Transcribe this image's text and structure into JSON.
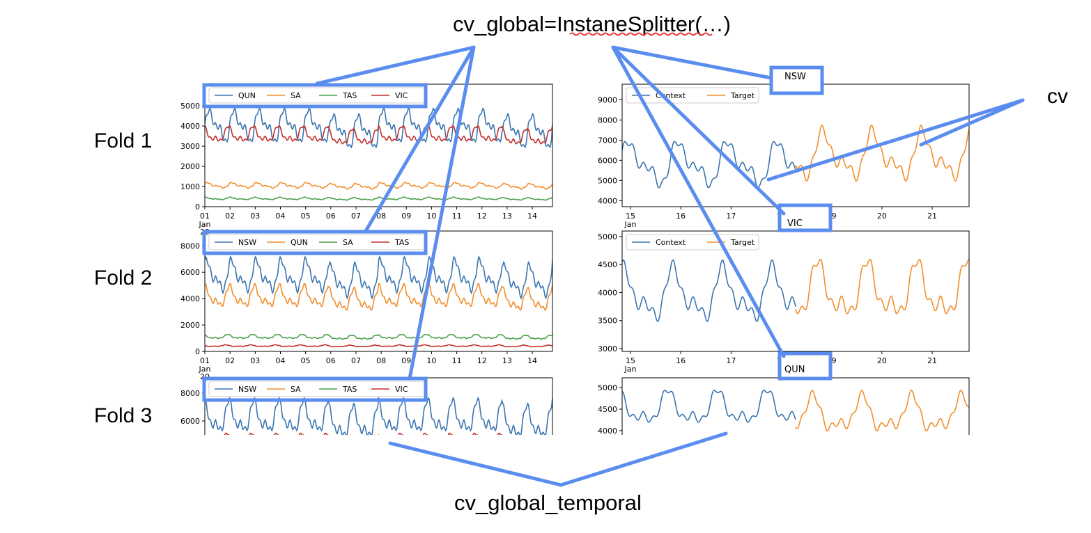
{
  "diagram": {
    "title_code": "cv_global=InstaneSplitter(…)",
    "bottom_label": "cv_global_temporal",
    "right_label": "cv",
    "fold_labels": [
      "Fold 1",
      "Fold 2",
      "Fold 3"
    ],
    "callout_labels": [
      "NSW",
      "VIC",
      "QUN"
    ],
    "accent_color": "#5b8def",
    "squiggle_color": "#e53935"
  },
  "chart_data": [
    {
      "type": "line",
      "fold": "Fold 1",
      "legend": [
        "QUN",
        "SA",
        "TAS",
        "VIC"
      ],
      "series_colors": [
        "#3a75b0",
        "#f28e2b",
        "#4aa14a",
        "#c4302b"
      ],
      "yticks": [
        "0",
        "1000",
        "2000",
        "3000",
        "4000",
        "5000"
      ],
      "ylim": [
        0,
        5800
      ],
      "xticks": [
        "01",
        "02",
        "03",
        "04",
        "05",
        "06",
        "07",
        "08",
        "09",
        "10",
        "11",
        "12",
        "13",
        "14"
      ],
      "xsub": [
        "Jan",
        "20"
      ],
      "series": [
        {
          "name": "QUN",
          "base": 4000,
          "amp": 1100
        },
        {
          "name": "SA",
          "base": 1050,
          "amp": 180
        },
        {
          "name": "TAS",
          "base": 400,
          "amp": 80
        },
        {
          "name": "VIC",
          "base": 3550,
          "amp": 550
        }
      ]
    },
    {
      "type": "line",
      "fold": "Fold 1",
      "legend": [
        "Context",
        "Target"
      ],
      "series_colors": [
        "#3a75b0",
        "#f28e2b"
      ],
      "yticks": [
        "4000",
        "5000",
        "6000",
        "7000",
        "8000",
        "9000"
      ],
      "ylim": [
        3700,
        9500
      ],
      "xticks": [
        "15",
        "16",
        "17",
        "18",
        "19",
        "20",
        "21"
      ],
      "xsub": [
        "Jan"
      ],
      "series": [
        {
          "name": "Context",
          "base": 5800,
          "amp": 1500
        },
        {
          "name": "Target",
          "base": 6200,
          "amp": 1600
        }
      ]
    },
    {
      "type": "line",
      "fold": "Fold 2",
      "legend": [
        "NSW",
        "QUN",
        "SA",
        "TAS"
      ],
      "series_colors": [
        "#3a75b0",
        "#f28e2b",
        "#4aa14a",
        "#c4302b"
      ],
      "yticks": [
        "0",
        "2000",
        "4000",
        "6000",
        "8000"
      ],
      "ylim": [
        0,
        8700
      ],
      "xticks": [
        "01",
        "02",
        "03",
        "04",
        "05",
        "06",
        "07",
        "08",
        "09",
        "10",
        "11",
        "12",
        "13",
        "14"
      ],
      "xsub": [
        "Jan",
        "20"
      ],
      "series": [
        {
          "name": "NSW",
          "base": 5700,
          "amp": 1600
        },
        {
          "name": "QUN",
          "base": 4100,
          "amp": 1100
        },
        {
          "name": "SA",
          "base": 1100,
          "amp": 220
        },
        {
          "name": "TAS",
          "base": 420,
          "amp": 90
        }
      ]
    },
    {
      "type": "line",
      "fold": "Fold 2",
      "legend": [
        "Context",
        "Target"
      ],
      "series_colors": [
        "#3a75b0",
        "#f28e2b"
      ],
      "yticks": [
        "3000",
        "3500",
        "4000",
        "4500",
        "5000"
      ],
      "ylim": [
        2950,
        5000
      ],
      "xticks": [
        "15",
        "16",
        "17",
        "18",
        "19",
        "20",
        "21"
      ],
      "xsub": [
        "Jan"
      ],
      "series": [
        {
          "name": "Context",
          "base": 3950,
          "amp": 650
        },
        {
          "name": "Target",
          "base": 4000,
          "amp": 700
        }
      ]
    },
    {
      "type": "line",
      "fold": "Fold 3",
      "legend": [
        "NSW",
        "SA",
        "TAS",
        "VIC"
      ],
      "series_colors": [
        "#3a75b0",
        "#f28e2b",
        "#4aa14a",
        "#c4302b"
      ],
      "yticks": [
        "6000",
        "8000"
      ],
      "ylim": [
        5000,
        8700
      ],
      "xticks": [],
      "xsub": [],
      "series": [
        {
          "name": "NSW",
          "base": 6200,
          "amp": 1600
        },
        {
          "name": "VIC",
          "base": 4600,
          "amp": 600
        }
      ]
    },
    {
      "type": "line",
      "fold": "Fold 3",
      "legend": [],
      "series_colors": [
        "#3a75b0",
        "#f28e2b"
      ],
      "yticks": [
        "4000",
        "4500",
        "5000"
      ],
      "ylim": [
        3900,
        5100
      ],
      "xticks": [],
      "xsub": [],
      "series": [
        {
          "name": "Context",
          "base": 4500,
          "amp": 550
        },
        {
          "name": "Target",
          "base": 4350,
          "amp": 600
        }
      ]
    }
  ]
}
